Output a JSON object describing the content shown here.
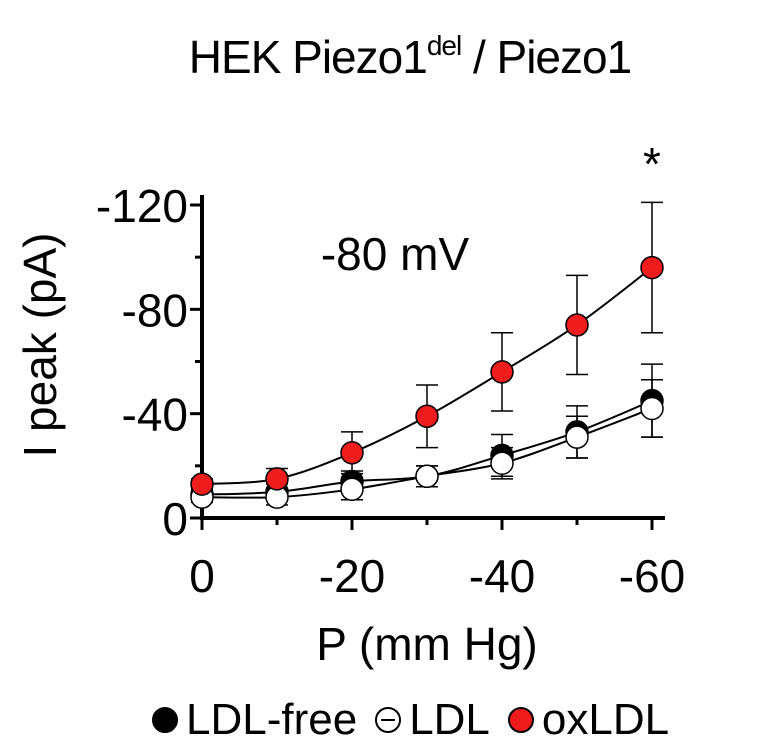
{
  "title": {
    "main": "HEK Piezo1",
    "sup": "del",
    "rest": " / Piezo1"
  },
  "chart_data": {
    "type": "scatter",
    "xlabel": "P (mm Hg)",
    "ylabel": "I peak (pA)",
    "annotation": "-80 mV",
    "significance": "*",
    "x": [
      0,
      -10,
      -20,
      -30,
      -40,
      -50,
      -60
    ],
    "x_ticks": [
      "0",
      "-20",
      "-40",
      "-60"
    ],
    "x_tick_values": [
      0,
      -20,
      -40,
      -60
    ],
    "y_ticks": [
      "0",
      "-40",
      "-80",
      "-120"
    ],
    "y_tick_values": [
      0,
      -40,
      -80,
      -120
    ],
    "xlim": [
      0,
      -65
    ],
    "ylim": [
      0,
      -120
    ],
    "grid": false,
    "legend_position": "bottom",
    "fit_lines": true,
    "series": [
      {
        "name": "LDL-free",
        "marker": "filled",
        "color": "#000000",
        "values": [
          -9,
          -10,
          -14,
          -16,
          -24,
          -33,
          -45
        ],
        "err": [
          2,
          3,
          4,
          4,
          8,
          10,
          14
        ]
      },
      {
        "name": "LDL",
        "marker": "open",
        "color": "#ffffff",
        "values": [
          -8,
          -8,
          -11,
          -16,
          -21,
          -31,
          -42
        ],
        "err": [
          2,
          3,
          4,
          4,
          6,
          8,
          11
        ]
      },
      {
        "name": "oxLDL",
        "marker": "filled",
        "color": "#ee1c1c",
        "values": [
          -13,
          -15,
          -25,
          -39,
          -56,
          -74,
          -96
        ],
        "err": [
          2,
          4,
          8,
          12,
          15,
          19,
          25
        ]
      }
    ]
  }
}
